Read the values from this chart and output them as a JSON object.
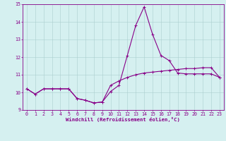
{
  "hours": [
    0,
    1,
    2,
    3,
    4,
    5,
    6,
    7,
    8,
    9,
    10,
    11,
    12,
    13,
    14,
    15,
    16,
    17,
    18,
    19,
    20,
    21,
    22,
    23
  ],
  "line1": [
    10.2,
    9.9,
    10.2,
    10.2,
    10.2,
    10.2,
    9.65,
    9.55,
    9.4,
    9.45,
    10.05,
    10.4,
    12.1,
    13.8,
    14.85,
    13.3,
    12.1,
    11.8,
    11.1,
    11.05,
    11.05,
    11.05,
    11.05,
    10.85
  ],
  "line2": [
    10.2,
    9.9,
    10.2,
    10.2,
    10.2,
    10.2,
    9.65,
    9.55,
    9.4,
    9.45,
    10.4,
    10.65,
    10.85,
    11.0,
    11.1,
    11.15,
    11.2,
    11.25,
    11.3,
    11.35,
    11.35,
    11.4,
    11.4,
    10.85
  ],
  "background": "#d5f0f0",
  "grid_color": "#aacece",
  "line_color": "#880088",
  "xlabel": "Windchill (Refroidissement éolien,°C)",
  "ylim": [
    9.0,
    15.0
  ],
  "xlim_min": -0.5,
  "xlim_max": 23.5,
  "yticks": [
    9,
    10,
    11,
    12,
    13,
    14,
    15
  ],
  "xticks": [
    0,
    1,
    2,
    3,
    4,
    5,
    6,
    7,
    8,
    9,
    10,
    11,
    12,
    13,
    14,
    15,
    16,
    17,
    18,
    19,
    20,
    21,
    22,
    23
  ],
  "tick_fontsize": 4.8,
  "xlabel_fontsize": 5.2,
  "line_width": 0.8,
  "marker_size": 2.5
}
